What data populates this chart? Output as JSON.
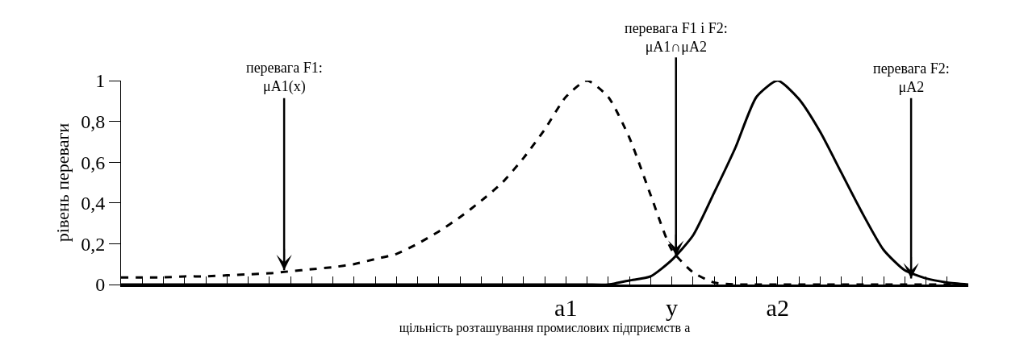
{
  "chart_data": {
    "type": "line",
    "categories": [
      null,
      null,
      null,
      null,
      null,
      null,
      null,
      null,
      null,
      null,
      null,
      null,
      null,
      null,
      null,
      null,
      null,
      null,
      null,
      null,
      null,
      "a1",
      null,
      null,
      null,
      null,
      "y",
      null,
      null,
      null,
      null,
      "a2",
      null,
      null,
      null,
      null,
      null,
      null,
      null,
      null,
      null
    ],
    "series": [
      {
        "color": "#000000",
        "line_style": "dashed",
        "values": [
          0.035,
          0.035,
          0.035,
          0.04,
          0.04,
          0.045,
          0.05,
          0.055,
          0.065,
          0.075,
          0.085,
          0.1,
          0.125,
          0.15,
          0.2,
          0.26,
          0.33,
          0.41,
          0.5,
          0.62,
          0.76,
          0.92,
          1.0,
          0.92,
          0.72,
          0.44,
          0.17,
          0.06,
          0.01,
          0,
          0,
          0,
          0,
          0,
          0,
          0,
          0,
          0,
          0,
          0,
          0
        ]
      },
      {
        "color": "#000000",
        "line_style": "solid",
        "values": [
          0,
          0,
          0,
          0,
          0,
          0,
          0,
          0,
          0,
          0,
          0,
          0,
          0,
          0,
          0,
          0,
          0,
          0,
          0,
          0,
          0,
          0,
          0,
          0,
          0.02,
          0.04,
          0.12,
          0.24,
          0.45,
          0.67,
          0.92,
          1.0,
          0.91,
          0.75,
          0.55,
          0.35,
          0.17,
          0.07,
          0.03,
          0.01,
          0
        ]
      }
    ],
    "ylabel": "рівень переваги",
    "xlabel": "щільність розташування промислових підприємств a",
    "ylim": [
      0,
      1
    ],
    "yticks": [
      0,
      {
        "value": 0.2,
        "label": "0,2"
      },
      {
        "value": 0.4,
        "label": "0,4"
      },
      {
        "value": 0.6,
        "label": "0,6"
      },
      {
        "value": 0.8,
        "label": "0,8"
      },
      1
    ],
    "annotations": [
      {
        "text": "перевага F1:\nμA1(x)",
        "y": 0.07
      },
      {
        "text": "перевага F1 і F2:\nμA1∩μA2",
        "y": 0.14
      },
      {
        "text": "перевага F2:\nμA2",
        "y": 0.03
      }
    ],
    "legend": false
  }
}
